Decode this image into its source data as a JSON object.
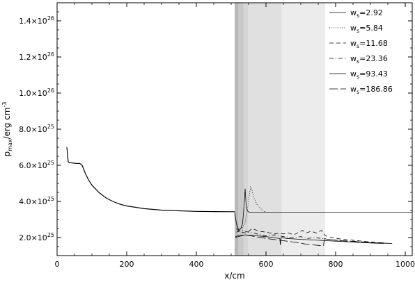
{
  "chart_data": {
    "type": "line",
    "xlabel": "x/cm",
    "ylabel": "p_max/erg cm^-3",
    "ylabel_parts": {
      "main": "p",
      "sub": "max",
      "unit": "/erg cm",
      "sup": "-3"
    },
    "xlim": [
      0,
      1020
    ],
    "ylim": [
      1e+25,
      1.5e+26
    ],
    "x_ticks": [
      0,
      200,
      400,
      600,
      800,
      1000
    ],
    "x_tick_labels": [
      "0",
      "200",
      "400",
      "600",
      "800",
      "1000"
    ],
    "y_ticks": [
      2e+25,
      4e+25,
      6e+25,
      8e+25,
      1e+26,
      1.2e+26,
      1.4e+26
    ],
    "y_tick_labels": [
      {
        "mant": "2.0",
        "exp": "25"
      },
      {
        "mant": "4.0",
        "exp": "25"
      },
      {
        "mant": "6.0",
        "exp": "25"
      },
      {
        "mant": "8.0",
        "exp": "25"
      },
      {
        "mant": "1.0",
        "exp": "26"
      },
      {
        "mant": "1.2",
        "exp": "26"
      },
      {
        "mant": "1.4",
        "exp": "26"
      }
    ],
    "legend_placement": "top-right",
    "shaded_regions": [
      {
        "x": [
          510,
          520
        ],
        "color": "#b8b8b8"
      },
      {
        "x": [
          520,
          535
        ],
        "color": "#c9c9c9"
      },
      {
        "x": [
          535,
          548
        ],
        "color": "#d6d6d6"
      },
      {
        "x": [
          548,
          645
        ],
        "color": "#e0e0e0"
      },
      {
        "x": [
          645,
          770
        ],
        "color": "#ececec"
      }
    ],
    "common_curve": {
      "x": [
        28,
        32,
        35,
        45,
        55,
        65,
        72,
        80,
        90,
        100,
        120,
        140,
        160,
        180,
        200,
        250,
        300,
        350,
        400,
        450,
        500,
        510
      ],
      "y": [
        7e+25,
        6.2e+25,
        6.15e+25,
        6.13e+25,
        6.1e+25,
        6.1e+25,
        6e+25,
        5.6e+25,
        5.2e+25,
        4.9e+25,
        4.5e+25,
        4.2e+25,
        4e+25,
        3.85e+25,
        3.75e+25,
        3.6e+25,
        3.52e+25,
        3.48e+25,
        3.45e+25,
        3.44e+25,
        3.43e+25,
        3.43e+25
      ]
    },
    "series": [
      {
        "name": "2.92",
        "dash": "",
        "width": 0.8,
        "x": [
          510,
          513,
          517,
          522,
          528,
          533,
          538,
          540,
          541,
          543,
          546,
          550,
          560,
          575,
          600,
          700,
          800,
          900,
          1020
        ],
        "y": [
          3.4e+25,
          3e+25,
          2.6e+25,
          2.4e+25,
          2.5e+25,
          2.8e+25,
          4e+25,
          4.7e+25,
          4.4e+25,
          3.8e+25,
          3.5e+25,
          3.42e+25,
          3.4e+25,
          3.4e+25,
          3.4e+25,
          3.4e+25,
          3.4e+25,
          3.4e+25,
          3.4e+25
        ]
      },
      {
        "name": "5.84",
        "dash": "1,2",
        "width": 0.8,
        "x": [
          510,
          515,
          522,
          530,
          540,
          548,
          553,
          556,
          560,
          565,
          575,
          590,
          600
        ],
        "y": [
          3.3e+25,
          2.8e+25,
          2.5e+25,
          2.5e+25,
          2.8e+25,
          3.7e+25,
          4.5e+25,
          4.8e+25,
          4.6e+25,
          4.2e+25,
          3.8e+25,
          3.5e+25,
          3.4e+25
        ]
      },
      {
        "name": "11.68",
        "dash": "6,4",
        "width": 0.8,
        "x": [
          515,
          525,
          545,
          560,
          580,
          600,
          625,
          640,
          650,
          665,
          680,
          695,
          705,
          715,
          730,
          745,
          760,
          770,
          800,
          850,
          900,
          940
        ],
        "y": [
          2.5e+25,
          2.3e+25,
          2.25e+25,
          2.5e+25,
          2.35e+25,
          2.3e+25,
          2.2e+25,
          2.25e+25,
          2.2e+25,
          2.25e+25,
          2.15e+25,
          2.3e+25,
          2.4e+25,
          2.25e+25,
          2.35e+25,
          2.25e+25,
          2.4e+25,
          2.1e+25,
          1.95e+25,
          1.85e+25,
          1.75e+25,
          1.7e+25
        ]
      },
      {
        "name": "23.36",
        "dash": "6,3,1,3",
        "width": 0.8,
        "x": [
          515,
          530,
          550,
          575,
          600,
          625,
          650,
          680,
          700,
          720,
          740,
          760,
          800,
          850,
          900,
          950
        ],
        "y": [
          2.3e+25,
          2.4e+25,
          2.3e+25,
          2.2e+25,
          2.1e+25,
          2.15e+25,
          2.05e+25,
          2e+25,
          2.05e+25,
          1.95e+25,
          2e+25,
          1.95e+25,
          1.85e+25,
          1.8e+25,
          1.72e+25,
          1.7e+25
        ]
      },
      {
        "name": "93.43",
        "dash": "",
        "width": 0.8,
        "x": [
          512,
          520,
          540,
          570,
          600,
          620,
          640,
          641,
          644,
          660,
          700,
          750,
          800,
          850,
          900,
          940
        ],
        "y": [
          2e+25,
          2.05e+25,
          2.15e+25,
          2.1e+25,
          2.05e+25,
          2e+25,
          1.95e+25,
          1.6e+25,
          2e+25,
          1.95e+25,
          1.9e+25,
          1.85e+25,
          1.8e+25,
          1.75e+25,
          1.7e+25,
          1.67e+25
        ]
      },
      {
        "name": "186.86",
        "dash": "12,4",
        "width": 0.8,
        "x": [
          512,
          520,
          540,
          570,
          600,
          640,
          680,
          720,
          760,
          765,
          768,
          780,
          820,
          860,
          900,
          950,
          970
        ],
        "y": [
          2.05e+25,
          2.1e+25,
          2.15e+25,
          2.05e+25,
          1.95e+25,
          1.85e+25,
          1.75e+25,
          1.62e+25,
          1.55e+25,
          1.55e+25,
          1.95e+25,
          1.9e+25,
          1.82e+25,
          1.77e+25,
          1.72e+25,
          1.68e+25,
          1.67e+25
        ]
      }
    ],
    "legend": {
      "prefix": "w",
      "prefix_sub": "s",
      "labels": [
        "2.92",
        "5.84",
        "11.68",
        "23.36",
        "93.43",
        "186.86"
      ]
    }
  }
}
